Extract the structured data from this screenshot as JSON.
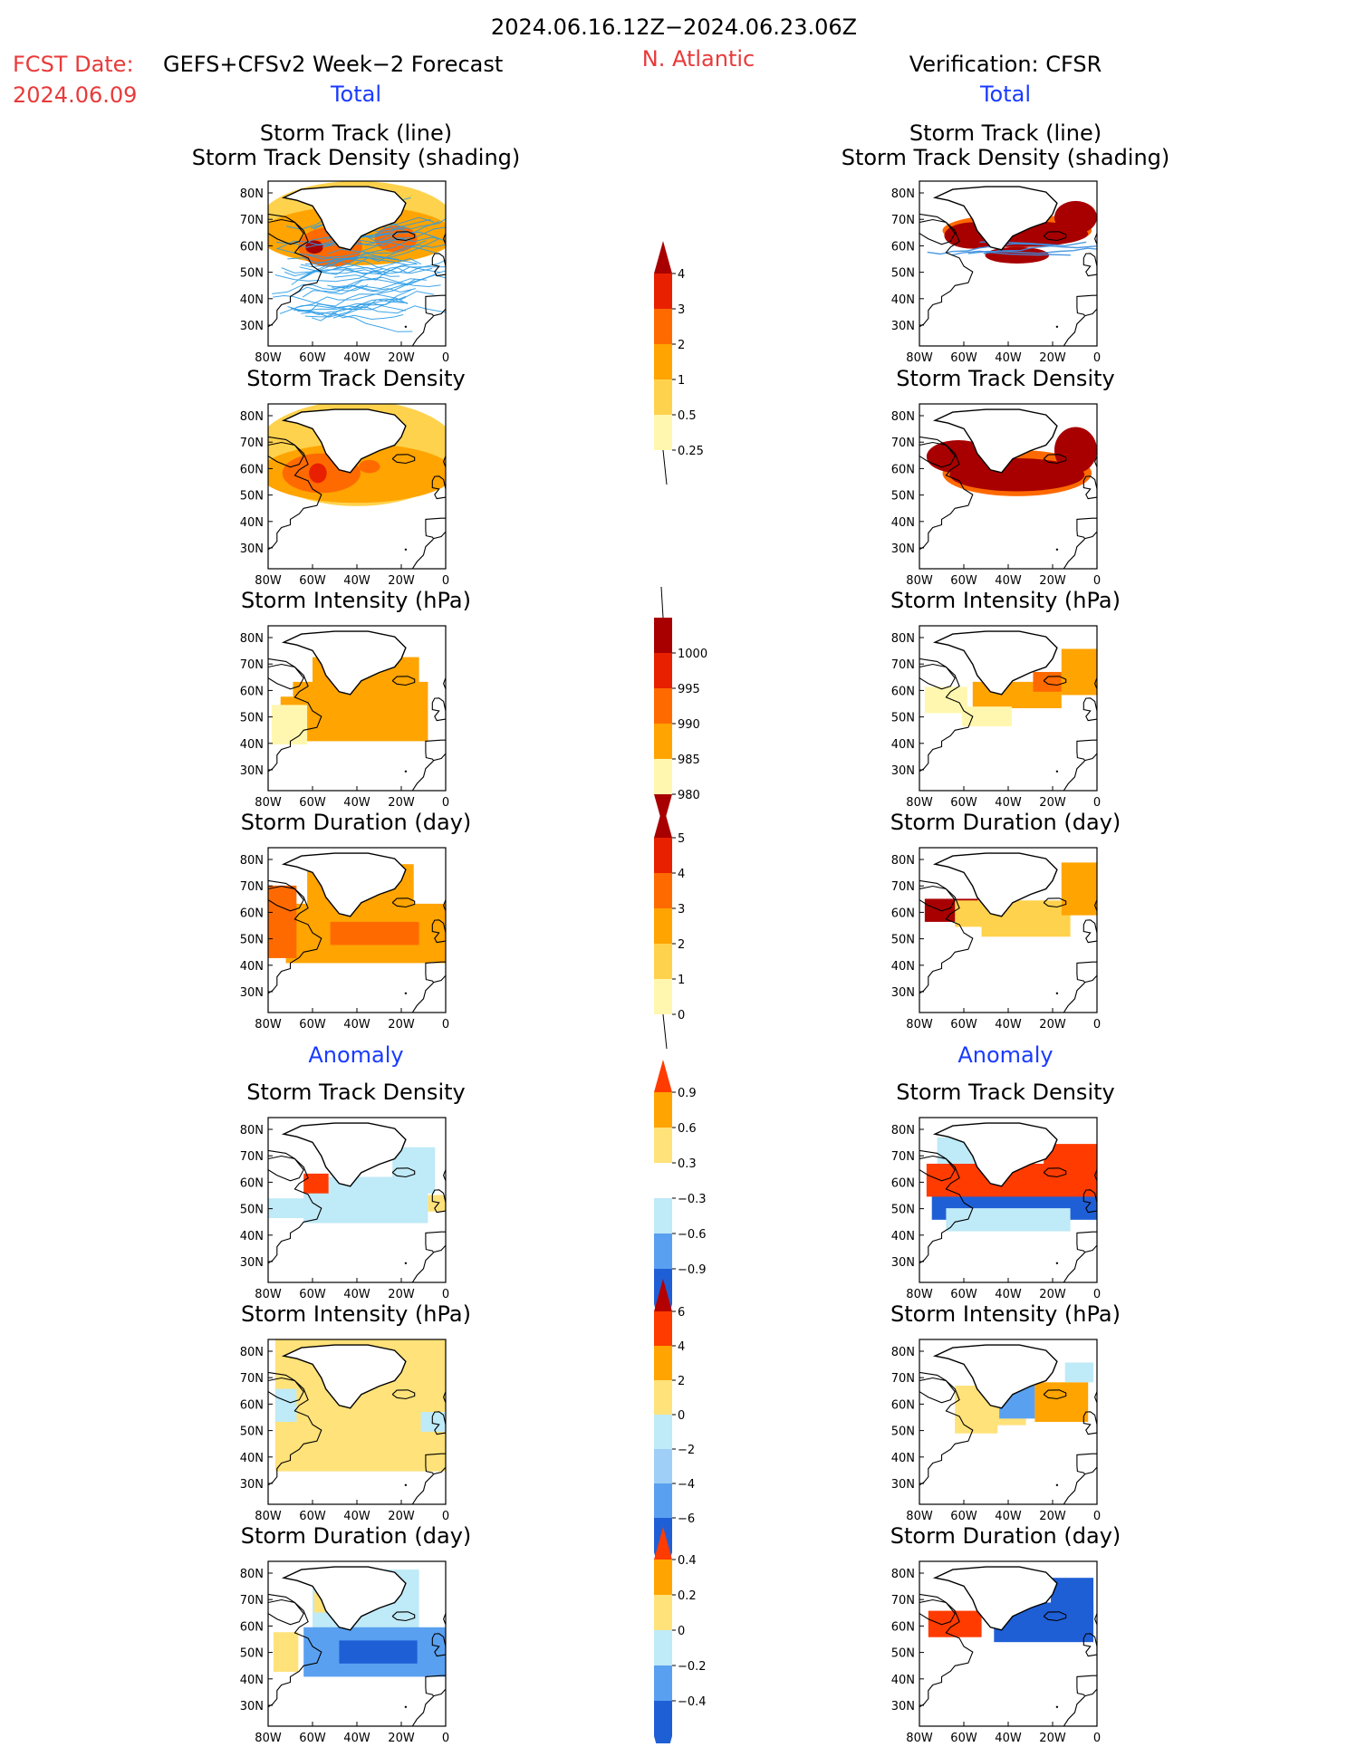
{
  "header": {
    "period": "2024.06.16.12Z−2024.06.23.06Z",
    "fcst_label": "FCST Date:",
    "model": "GEFS+CFSv2 Week−2 Forecast",
    "fcst_date": "2024.06.09",
    "region": "N. Atlantic",
    "verification": "Verification: CFSR"
  },
  "sections": {
    "total_left": "Total",
    "total_right": "Total",
    "anomaly_left": "Anomaly",
    "anomaly_right": "Anomaly"
  },
  "titles": {
    "track_line": "Storm Track (line)",
    "track_shading": "Storm Track Density (shading)",
    "density": "Storm Track Density",
    "intensity": "Storm Intensity (hPa)",
    "duration": "Storm Duration (day)"
  },
  "axes": {
    "lat_labels": [
      "80N",
      "70N",
      "60N",
      "50N",
      "40N",
      "30N"
    ],
    "lon_labels": [
      "80W",
      "60W",
      "40W",
      "20W",
      "0"
    ]
  },
  "colorbars": {
    "density_total": [
      "4",
      "3",
      "2",
      "1",
      "0.5",
      "0.25"
    ],
    "intensity_total": [
      "1000",
      "995",
      "990",
      "985",
      "980"
    ],
    "duration_total": [
      "5",
      "4",
      "3",
      "2",
      "1",
      "0"
    ],
    "density_anom": [
      "0.9",
      "0.6",
      "0.3",
      "−0.3",
      "−0.6",
      "−0.9"
    ],
    "intensity_anom": [
      "6",
      "4",
      "2",
      "0",
      "−2",
      "−4",
      "−6"
    ],
    "duration_anom": [
      "0.4",
      "0.2",
      "0",
      "−0.2",
      "−0.4"
    ]
  },
  "palettes": {
    "density_total": [
      "#fff7b0",
      "#ffd24d",
      "#ffa400",
      "#ff6a00",
      "#e82000",
      "#a80000"
    ],
    "intensity_total": [
      "#fff7b0",
      "#ffa400",
      "#ff6a00",
      "#e82000",
      "#a80000"
    ],
    "duration_total": [
      "#fff7b0",
      "#ffd24d",
      "#ffa400",
      "#ff6a00",
      "#e82000",
      "#a80000"
    ],
    "density_anom": [
      "#1f5fd6",
      "#5aa0f0",
      "#bfeaf7",
      "#ffffff",
      "#ffe27a",
      "#ffa400",
      "#ff3b00"
    ],
    "intensity_anom": [
      "#1f5fd6",
      "#5aa0f0",
      "#9fcff7",
      "#bfeaf7",
      "#ffe27a",
      "#ffa400",
      "#ff3b00",
      "#b50000"
    ],
    "duration_anom": [
      "#1f5fd6",
      "#5aa0f0",
      "#bfeaf7",
      "#ffe27a",
      "#ffa400",
      "#ff3b00"
    ]
  }
}
